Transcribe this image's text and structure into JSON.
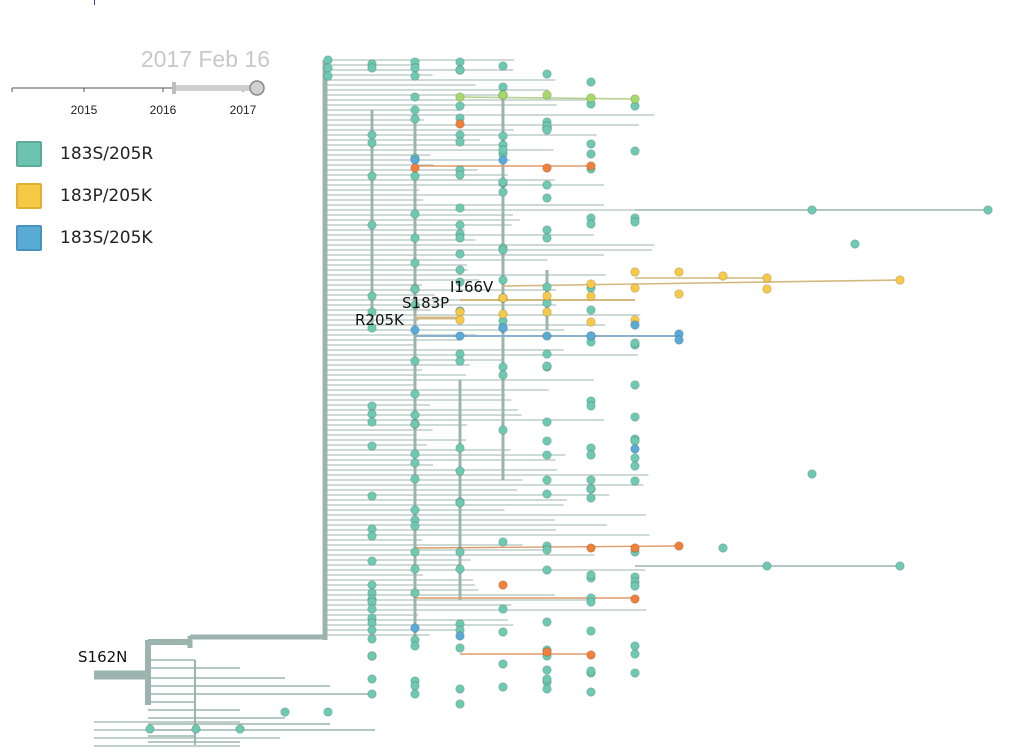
{
  "timeline": {
    "current_date": "2017 Feb 16",
    "tick_labels": [
      "2015",
      "2016",
      "2017"
    ]
  },
  "legend": {
    "items": [
      {
        "label": "183S/205R",
        "fill": "#6ec2b0",
        "stroke": "#5aab98"
      },
      {
        "label": "183P/205K",
        "fill": "#f6c945",
        "stroke": "#e2b030"
      },
      {
        "label": "183S/205K",
        "fill": "#5aaad6",
        "stroke": "#4793c0"
      }
    ]
  },
  "tree": {
    "branch_labels": [
      "S162N",
      "R205K",
      "S183P",
      "I166V"
    ],
    "colors": {
      "branch": "#9bb5ae",
      "node_teal": "#6ec9b2",
      "node_yellow": "#f7c948",
      "node_blue": "#5aaad8",
      "node_orange": "#f2803a",
      "node_lime": "#a6d96a",
      "branch_yellow": "#d4b97f",
      "branch_blue": "#8cb0cc",
      "branch_orange": "#e09a6a",
      "branch_lime": "#b6cf8e"
    }
  }
}
